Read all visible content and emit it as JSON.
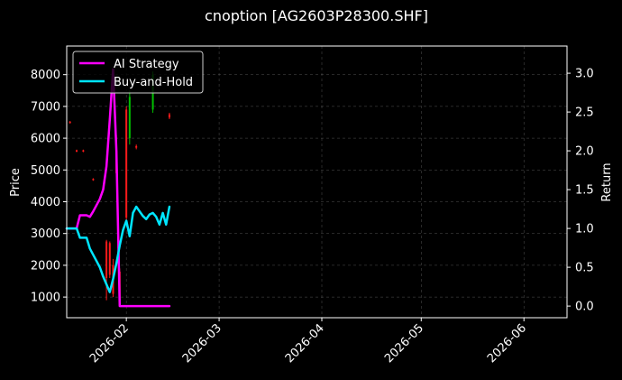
{
  "chart_data": {
    "type": "line",
    "title": "cnoption [AG2603P28300.SHF]",
    "ylabel_left": "Price",
    "ylabel_right": "Return",
    "ylim_left": [
      350,
      8900
    ],
    "ylim_right": [
      -0.15,
      3.35
    ],
    "xlim": [
      "2026-01-14",
      "2026-06-14"
    ],
    "grid": true,
    "legend_position": "top-left",
    "x_ticks": [
      "2026-02-01",
      "2026-03-01",
      "2026-04-01",
      "2026-05-01",
      "2026-06-01"
    ],
    "x_tick_labels": [
      "2026-02",
      "2026-03",
      "2026-04",
      "2026-05",
      "2026-06"
    ],
    "left_ticks": [
      1000,
      2000,
      3000,
      4000,
      5000,
      6000,
      7000,
      8000
    ],
    "right_ticks": [
      0.0,
      0.5,
      1.0,
      1.5,
      2.0,
      2.5,
      3.0
    ],
    "right_tick_labels": [
      "0.0",
      "0.5",
      "1.0",
      "1.5",
      "2.0",
      "2.5",
      "3.0"
    ],
    "series": [
      {
        "name": "AI Strategy",
        "axis": "right",
        "color": "#ff00ff",
        "x": [
          "2026-01-14",
          "2026-01-17",
          "2026-01-18",
          "2026-01-19",
          "2026-01-20",
          "2026-01-21",
          "2026-01-22",
          "2026-01-23",
          "2026-01-24",
          "2026-01-25",
          "2026-01-26",
          "2026-01-27",
          "2026-01-28",
          "2026-01-29",
          "2026-01-30",
          "2026-02-01",
          "2026-02-14"
        ],
        "values": [
          1.0,
          1.0,
          1.17,
          1.17,
          1.17,
          1.15,
          1.22,
          1.3,
          1.38,
          1.5,
          1.8,
          2.4,
          3.05,
          2.0,
          0.0,
          0.0,
          0.0
        ]
      },
      {
        "name": "Buy-and-Hold",
        "axis": "right",
        "color": "#00e5ff",
        "x": [
          "2026-01-14",
          "2026-01-17",
          "2026-01-18",
          "2026-01-19",
          "2026-01-20",
          "2026-01-21",
          "2026-01-22",
          "2026-01-23",
          "2026-01-24",
          "2026-01-25",
          "2026-01-26",
          "2026-01-27",
          "2026-01-28",
          "2026-01-29",
          "2026-01-30",
          "2026-01-31",
          "2026-02-01",
          "2026-02-02",
          "2026-02-03",
          "2026-02-04",
          "2026-02-05",
          "2026-02-06",
          "2026-02-07",
          "2026-02-08",
          "2026-02-09",
          "2026-02-10",
          "2026-02-11",
          "2026-02-12",
          "2026-02-13",
          "2026-02-14"
        ],
        "values": [
          1.0,
          1.0,
          0.88,
          0.88,
          0.88,
          0.74,
          0.66,
          0.58,
          0.5,
          0.38,
          0.28,
          0.18,
          0.35,
          0.55,
          0.78,
          0.98,
          1.1,
          0.9,
          1.2,
          1.28,
          1.22,
          1.16,
          1.12,
          1.18,
          1.2,
          1.15,
          1.05,
          1.2,
          1.05,
          1.28
        ]
      }
    ],
    "candles": [
      {
        "date": "2026-01-15",
        "open": 6520,
        "close": 6480,
        "high": 6540,
        "low": 6460
      },
      {
        "date": "2026-01-17",
        "open": 5620,
        "close": 5580,
        "high": 5640,
        "low": 5560
      },
      {
        "date": "2026-01-19",
        "open": 5620,
        "close": 5580,
        "high": 5640,
        "low": 5560
      },
      {
        "date": "2026-01-22",
        "open": 4720,
        "close": 4680,
        "high": 4740,
        "low": 4660
      },
      {
        "date": "2026-01-26",
        "open": 2750,
        "close": 1600,
        "high": 2800,
        "low": 900
      },
      {
        "date": "2026-01-27",
        "open": 2700,
        "close": 1700,
        "high": 2750,
        "low": 1600
      },
      {
        "date": "2026-01-28",
        "open": 2000,
        "close": 1100,
        "high": 2200,
        "low": 1000
      },
      {
        "date": "2026-01-29",
        "open": 5600,
        "close": 4900,
        "high": 6100,
        "low": 4800
      },
      {
        "date": "2026-01-30",
        "open": 1800,
        "close": 800,
        "high": 1900,
        "low": 700
      },
      {
        "date": "2026-02-01",
        "open": 6900,
        "close": 3500,
        "high": 7000,
        "low": 3400
      },
      {
        "date": "2026-02-02",
        "open": 6000,
        "close": 7300,
        "high": 7500,
        "low": 5800
      },
      {
        "date": "2026-02-04",
        "open": 5750,
        "close": 5700,
        "high": 5800,
        "low": 5650
      },
      {
        "date": "2026-02-09",
        "open": 6900,
        "close": 8000,
        "high": 8100,
        "low": 6800
      },
      {
        "date": "2026-02-14",
        "open": 6750,
        "close": 6650,
        "high": 6800,
        "low": 6600
      }
    ]
  }
}
